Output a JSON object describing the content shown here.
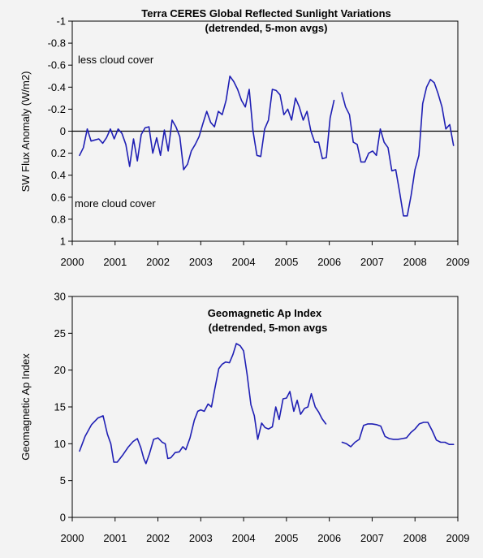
{
  "chart_data": [
    {
      "type": "line",
      "title": "Terra CERES Global Reflected Sunlight Variations",
      "subtitle": "(detrended, 5-mon avgs)",
      "ylabel": "SW Flux Anomaly (W/m2)",
      "xlabel": "",
      "xlim": [
        2000,
        2009
      ],
      "ylim": [
        -1,
        1
      ],
      "y_inverted": true,
      "xticks": [
        "2000",
        "2001",
        "2002",
        "2003",
        "2004",
        "2005",
        "2006",
        "2007",
        "2008",
        "2009"
      ],
      "yticks": [
        "-1",
        "-0.8",
        "-0.6",
        "-0.4",
        "-0.2",
        "0",
        "0.2",
        "0.4",
        "0.6",
        "0.8",
        "1"
      ],
      "zero_line": true,
      "grid": false,
      "annotations": [
        "less cloud cover",
        "more cloud cover"
      ],
      "color": "#1f1fb4",
      "series": [
        {
          "segments": [
            [
              [
                2000.17,
                0.22
              ],
              [
                2000.26,
                0.15
              ],
              [
                2000.35,
                -0.02
              ],
              [
                2000.44,
                0.09
              ],
              [
                2000.53,
                0.08
              ],
              [
                2000.62,
                0.07
              ],
              [
                2000.71,
                0.11
              ],
              [
                2000.8,
                0.06
              ],
              [
                2000.89,
                -0.02
              ],
              [
                2000.98,
                0.07
              ],
              [
                2001.07,
                -0.02
              ],
              [
                2001.16,
                0.02
              ],
              [
                2001.25,
                0.12
              ],
              [
                2001.34,
                0.32
              ],
              [
                2001.43,
                0.07
              ],
              [
                2001.52,
                0.27
              ],
              [
                2001.61,
                0.03
              ],
              [
                2001.7,
                -0.03
              ],
              [
                2001.79,
                -0.04
              ],
              [
                2001.88,
                0.2
              ],
              [
                2001.97,
                0.06
              ],
              [
                2002.06,
                0.22
              ],
              [
                2002.15,
                -0.01
              ],
              [
                2002.24,
                0.18
              ],
              [
                2002.33,
                -0.1
              ],
              [
                2002.42,
                -0.04
              ],
              [
                2002.51,
                0.05
              ],
              [
                2002.6,
                0.35
              ],
              [
                2002.69,
                0.3
              ],
              [
                2002.78,
                0.18
              ],
              [
                2002.87,
                0.12
              ],
              [
                2002.96,
                0.05
              ],
              [
                2003.05,
                -0.07
              ],
              [
                2003.14,
                -0.18
              ],
              [
                2003.23,
                -0.08
              ],
              [
                2003.32,
                -0.04
              ],
              [
                2003.41,
                -0.18
              ],
              [
                2003.5,
                -0.15
              ],
              [
                2003.59,
                -0.28
              ],
              [
                2003.68,
                -0.5
              ],
              [
                2003.77,
                -0.45
              ],
              [
                2003.86,
                -0.38
              ],
              [
                2003.95,
                -0.28
              ],
              [
                2004.04,
                -0.22
              ],
              [
                2004.13,
                -0.38
              ],
              [
                2004.22,
                0.0
              ],
              [
                2004.31,
                0.22
              ],
              [
                2004.4,
                0.23
              ],
              [
                2004.49,
                -0.02
              ],
              [
                2004.58,
                -0.1
              ],
              [
                2004.67,
                -0.38
              ],
              [
                2004.76,
                -0.37
              ],
              [
                2004.85,
                -0.33
              ],
              [
                2004.94,
                -0.15
              ],
              [
                2005.03,
                -0.2
              ],
              [
                2005.12,
                -0.1
              ],
              [
                2005.21,
                -0.3
              ],
              [
                2005.3,
                -0.22
              ],
              [
                2005.39,
                -0.1
              ],
              [
                2005.48,
                -0.18
              ],
              [
                2005.57,
                0.0
              ],
              [
                2005.66,
                0.1
              ],
              [
                2005.75,
                0.1
              ],
              [
                2005.84,
                0.25
              ],
              [
                2005.93,
                0.24
              ],
              [
                2006.02,
                -0.12
              ],
              [
                2006.11,
                -0.28
              ]
            ],
            [
              [
                2006.29,
                -0.35
              ],
              [
                2006.38,
                -0.22
              ],
              [
                2006.47,
                -0.15
              ],
              [
                2006.56,
                0.1
              ],
              [
                2006.65,
                0.12
              ],
              [
                2006.74,
                0.28
              ],
              [
                2006.83,
                0.28
              ],
              [
                2006.92,
                0.2
              ],
              [
                2007.01,
                0.18
              ],
              [
                2007.1,
                0.22
              ],
              [
                2007.19,
                -0.02
              ],
              [
                2007.28,
                0.1
              ],
              [
                2007.37,
                0.15
              ],
              [
                2007.46,
                0.36
              ],
              [
                2007.55,
                0.35
              ],
              [
                2007.64,
                0.55
              ],
              [
                2007.73,
                0.77
              ],
              [
                2007.82,
                0.77
              ],
              [
                2007.91,
                0.58
              ],
              [
                2008.0,
                0.35
              ],
              [
                2008.09,
                0.22
              ],
              [
                2008.18,
                -0.25
              ],
              [
                2008.27,
                -0.4
              ],
              [
                2008.36,
                -0.47
              ],
              [
                2008.45,
                -0.44
              ],
              [
                2008.54,
                -0.34
              ],
              [
                2008.63,
                -0.22
              ],
              [
                2008.72,
                -0.02
              ],
              [
                2008.81,
                -0.06
              ],
              [
                2008.9,
                0.13
              ]
            ]
          ]
        }
      ]
    },
    {
      "type": "line",
      "title": "Geomagnetic Ap Index",
      "subtitle": "(detrended, 5-mon avgs",
      "ylabel": "Geomagnetic Ap Index",
      "xlabel": "",
      "xlim": [
        2000,
        2009
      ],
      "ylim": [
        0,
        30
      ],
      "y_inverted": false,
      "xticks": [
        "2000",
        "2001",
        "2002",
        "2003",
        "2004",
        "2005",
        "2006",
        "2007",
        "2008",
        "2009"
      ],
      "yticks": [
        "0",
        "5",
        "10",
        "15",
        "20",
        "25",
        "30"
      ],
      "zero_line": false,
      "grid": false,
      "annotations": [],
      "color": "#1f1fb4",
      "series": [
        {
          "segments": [
            [
              [
                2000.17,
                9.0
              ],
              [
                2000.3,
                11.0
              ],
              [
                2000.45,
                12.6
              ],
              [
                2000.6,
                13.5
              ],
              [
                2000.72,
                13.8
              ],
              [
                2000.82,
                11.3
              ],
              [
                2000.9,
                10.0
              ],
              [
                2000.97,
                7.5
              ],
              [
                2001.05,
                7.5
              ],
              [
                2001.17,
                8.4
              ],
              [
                2001.3,
                9.5
              ],
              [
                2001.42,
                10.3
              ],
              [
                2001.52,
                10.7
              ],
              [
                2001.6,
                9.5
              ],
              [
                2001.67,
                8.0
              ],
              [
                2001.72,
                7.3
              ],
              [
                2001.8,
                8.6
              ],
              [
                2001.9,
                10.6
              ],
              [
                2002.0,
                10.8
              ],
              [
                2002.1,
                10.2
              ],
              [
                2002.17,
                10.0
              ],
              [
                2002.23,
                8.0
              ],
              [
                2002.3,
                8.1
              ],
              [
                2002.4,
                8.8
              ],
              [
                2002.5,
                8.9
              ],
              [
                2002.58,
                9.6
              ],
              [
                2002.65,
                9.2
              ],
              [
                2002.75,
                10.8
              ],
              [
                2002.85,
                13.2
              ],
              [
                2002.93,
                14.4
              ],
              [
                2003.0,
                14.6
              ],
              [
                2003.08,
                14.4
              ],
              [
                2003.17,
                15.4
              ],
              [
                2003.25,
                15.0
              ],
              [
                2003.33,
                17.5
              ],
              [
                2003.42,
                20.2
              ],
              [
                2003.5,
                20.8
              ],
              [
                2003.58,
                21.1
              ],
              [
                2003.67,
                21.0
              ],
              [
                2003.75,
                22.1
              ],
              [
                2003.83,
                23.6
              ],
              [
                2003.92,
                23.3
              ],
              [
                2004.0,
                22.6
              ],
              [
                2004.08,
                19.5
              ],
              [
                2004.17,
                15.3
              ],
              [
                2004.25,
                13.8
              ],
              [
                2004.33,
                10.6
              ],
              [
                2004.42,
                12.8
              ],
              [
                2004.5,
                12.2
              ],
              [
                2004.58,
                12.0
              ],
              [
                2004.67,
                12.3
              ],
              [
                2004.75,
                15.0
              ],
              [
                2004.83,
                13.3
              ],
              [
                2004.92,
                16.1
              ],
              [
                2005.0,
                16.2
              ],
              [
                2005.08,
                17.1
              ],
              [
                2005.17,
                14.4
              ],
              [
                2005.25,
                15.9
              ],
              [
                2005.33,
                14.0
              ],
              [
                2005.42,
                14.8
              ],
              [
                2005.5,
                15.0
              ],
              [
                2005.58,
                16.8
              ],
              [
                2005.67,
                15.0
              ],
              [
                2005.75,
                14.3
              ],
              [
                2005.83,
                13.4
              ],
              [
                2005.92,
                12.7
              ]
            ],
            [
              [
                2006.3,
                10.2
              ],
              [
                2006.4,
                10.0
              ],
              [
                2006.5,
                9.6
              ],
              [
                2006.6,
                10.2
              ],
              [
                2006.7,
                10.6
              ],
              [
                2006.8,
                12.5
              ],
              [
                2006.9,
                12.7
              ],
              [
                2007.0,
                12.7
              ],
              [
                2007.1,
                12.6
              ],
              [
                2007.2,
                12.4
              ],
              [
                2007.3,
                11.0
              ],
              [
                2007.4,
                10.7
              ],
              [
                2007.5,
                10.6
              ],
              [
                2007.6,
                10.6
              ],
              [
                2007.7,
                10.7
              ],
              [
                2007.8,
                10.8
              ],
              [
                2007.9,
                11.5
              ],
              [
                2008.0,
                12.0
              ],
              [
                2008.1,
                12.7
              ],
              [
                2008.2,
                12.9
              ],
              [
                2008.3,
                12.9
              ],
              [
                2008.4,
                11.8
              ],
              [
                2008.5,
                10.5
              ],
              [
                2008.6,
                10.2
              ],
              [
                2008.7,
                10.2
              ],
              [
                2008.8,
                9.9
              ],
              [
                2008.9,
                9.9
              ]
            ]
          ]
        }
      ]
    }
  ]
}
